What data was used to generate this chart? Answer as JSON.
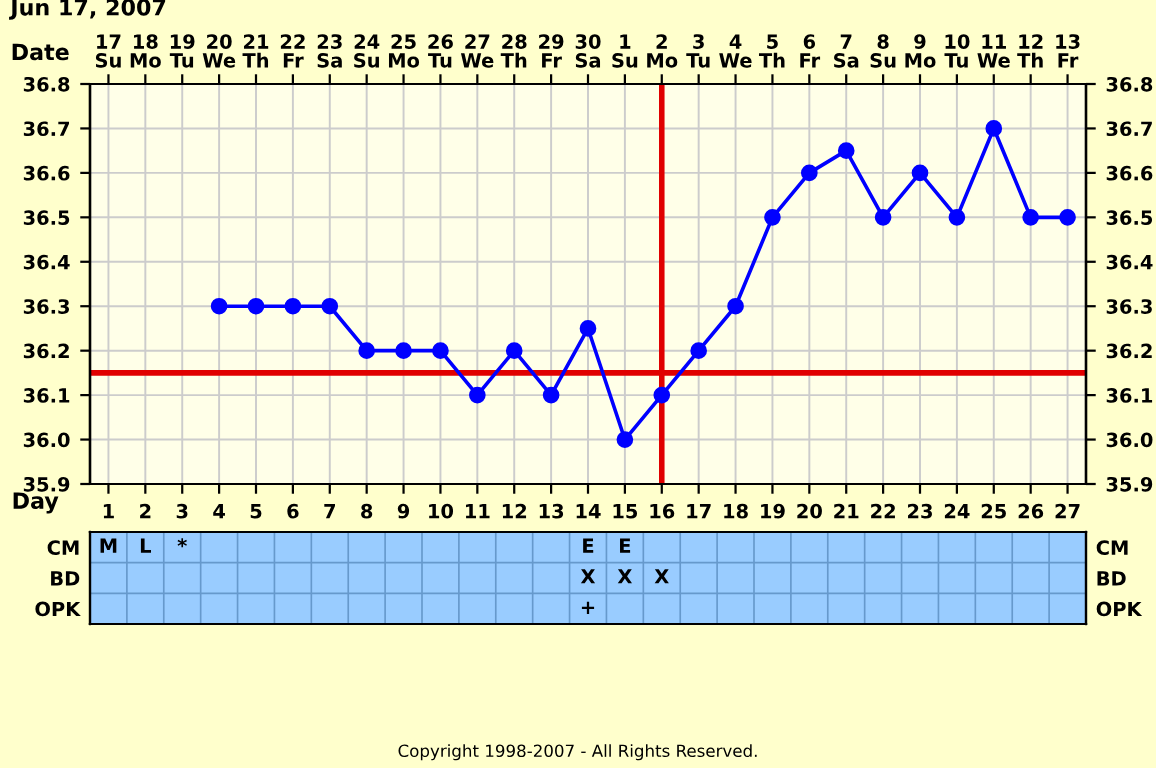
{
  "chart_data": [
    {
      "type": "line",
      "title": "Jun 17, 2007",
      "x2label": "Date",
      "xlabel": "Day",
      "x": [
        4,
        5,
        6,
        7,
        8,
        9,
        10,
        11,
        12,
        13,
        14,
        15,
        16,
        17,
        18,
        19,
        20,
        21,
        22,
        23,
        24,
        25,
        26,
        27
      ],
      "series": [
        {
          "color": "#0000ff",
          "values": [
            36.3,
            36.3,
            36.3,
            36.3,
            36.2,
            36.2,
            36.2,
            36.1,
            36.2,
            36.1,
            36.25,
            36.0,
            36.1,
            36.2,
            36.3,
            36.5,
            36.6,
            36.65,
            36.5,
            36.6,
            36.5,
            36.7,
            36.5,
            36.5
          ]
        }
      ],
      "xlim": [
        0.5,
        27.5
      ],
      "xticks": [
        1,
        2,
        3,
        4,
        5,
        6,
        7,
        8,
        9,
        10,
        11,
        12,
        13,
        14,
        15,
        16,
        17,
        18,
        19,
        20,
        21,
        22,
        23,
        24,
        25,
        26,
        27
      ],
      "x2lim": [
        "2007-06-16T12:00",
        "2007-07-13T12:00"
      ],
      "x2ticks": [
        {
          "value": "2007-06-17",
          "label": "17\nSu"
        },
        {
          "value": "2007-06-18",
          "label": "18\nMo"
        },
        {
          "value": "2007-06-19",
          "label": "19\nTu"
        },
        {
          "value": "2007-06-20",
          "label": "20\nWe"
        },
        {
          "value": "2007-06-21",
          "label": "21\nTh"
        },
        {
          "value": "2007-06-22",
          "label": "22\nFr"
        },
        {
          "value": "2007-06-23",
          "label": "23\nSa"
        },
        {
          "value": "2007-06-24",
          "label": "24\nSu"
        },
        {
          "value": "2007-06-25",
          "label": "25\nMo"
        },
        {
          "value": "2007-06-26",
          "label": "26\nTu"
        },
        {
          "value": "2007-06-27",
          "label": "27\nWe"
        },
        {
          "value": "2007-06-28",
          "label": "28\nTh"
        },
        {
          "value": "2007-06-29",
          "label": "29\nFr"
        },
        {
          "value": "2007-06-30",
          "label": "30\nSa"
        },
        {
          "value": "2007-07-01",
          "label": "1\nSu"
        },
        {
          "value": "2007-07-02",
          "label": "2\nMo"
        },
        {
          "value": "2007-07-03",
          "label": "3\nTu"
        },
        {
          "value": "2007-07-04",
          "label": "4\nWe"
        },
        {
          "value": "2007-07-05",
          "label": "5\nTh"
        },
        {
          "value": "2007-07-06",
          "label": "6\nFr"
        },
        {
          "value": "2007-07-07",
          "label": "7\nSa"
        },
        {
          "value": "2007-07-08",
          "label": "8\nSu"
        },
        {
          "value": "2007-07-09",
          "label": "9\nMo"
        },
        {
          "value": "2007-07-10",
          "label": "10\nTu"
        },
        {
          "value": "2007-07-11",
          "label": "11\nWe"
        },
        {
          "value": "2007-07-12",
          "label": "12\nTh"
        },
        {
          "value": "2007-07-13",
          "label": "13\nFr"
        }
      ],
      "ylim": [
        35.9,
        36.8
      ],
      "yticks": [
        {
          "value": 35.9,
          "label": "35.9"
        },
        {
          "value": 36.0,
          "label": "36.0"
        },
        {
          "value": 36.1,
          "label": "36.1"
        },
        {
          "value": 36.2,
          "label": "36.2"
        },
        {
          "value": 36.3,
          "label": "36.3"
        },
        {
          "value": 36.4,
          "label": "36.4"
        },
        {
          "value": 36.5,
          "label": "36.5"
        },
        {
          "value": 36.6,
          "label": "36.6"
        },
        {
          "value": 36.7,
          "label": "36.7"
        },
        {
          "value": 36.8,
          "label": "36.8"
        }
      ],
      "y2lim": [
        35.9,
        36.8
      ],
      "y2ticks": [
        {
          "value": 35.9,
          "label": "35.9"
        },
        {
          "value": 36.0,
          "label": "36.0"
        },
        {
          "value": 36.1,
          "label": "36.1"
        },
        {
          "value": 36.2,
          "label": "36.2"
        },
        {
          "value": 36.3,
          "label": "36.3"
        },
        {
          "value": 36.4,
          "label": "36.4"
        },
        {
          "value": 36.5,
          "label": "36.5"
        },
        {
          "value": 36.6,
          "label": "36.6"
        },
        {
          "value": 36.7,
          "label": "36.7"
        },
        {
          "value": 36.8,
          "label": "36.8"
        }
      ],
      "grid": true,
      "marker": "circle",
      "line_style": "solid",
      "ref_lines": [
        {
          "axis": "y",
          "value": 36.15,
          "color": "#e00000"
        },
        {
          "axis": "x",
          "value": 16,
          "color": "#e00000"
        }
      ],
      "annotations": [
        "Copyright 1998-2007 - All Rights Reserved."
      ]
    },
    {
      "type": "heatmap",
      "categories": [
        "1",
        "2",
        "3",
        "4",
        "5",
        "6",
        "7",
        "8",
        "9",
        "10",
        "11",
        "12",
        "13",
        "14",
        "15",
        "16",
        "17",
        "18",
        "19",
        "20",
        "21",
        "22",
        "23",
        "24",
        "25",
        "26",
        "27"
      ],
      "y_categories": [
        "CM",
        "BD",
        "OPK"
      ],
      "y2_categories": [
        "CM",
        "BD",
        "OPK"
      ],
      "cells": [
        [
          null,
          null,
          null,
          null,
          null,
          null,
          null,
          null,
          null,
          null,
          null,
          null,
          null,
          null,
          null,
          null,
          null,
          null,
          null,
          null,
          null,
          null,
          null,
          null,
          null,
          null,
          null
        ],
        [
          null,
          null,
          null,
          null,
          null,
          null,
          null,
          null,
          null,
          null,
          null,
          null,
          null,
          null,
          null,
          null,
          null,
          null,
          null,
          null,
          null,
          null,
          null,
          null,
          null,
          null,
          null
        ],
        [
          null,
          null,
          null,
          null,
          null,
          null,
          null,
          null,
          null,
          null,
          null,
          null,
          null,
          null,
          null,
          null,
          null,
          null,
          null,
          null,
          null,
          null,
          null,
          null,
          null,
          null,
          null
        ]
      ],
      "cell_labels": [
        [
          "M",
          "L",
          "*",
          null,
          null,
          null,
          null,
          null,
          null,
          null,
          null,
          null,
          null,
          "E",
          "E",
          null,
          null,
          null,
          null,
          null,
          null,
          null,
          null,
          null,
          null,
          null,
          null
        ],
        [
          null,
          null,
          null,
          null,
          null,
          null,
          null,
          null,
          null,
          null,
          null,
          null,
          null,
          "X",
          "X",
          "X",
          null,
          null,
          null,
          null,
          null,
          null,
          null,
          null,
          null,
          null,
          null
        ],
        [
          null,
          null,
          null,
          null,
          null,
          null,
          null,
          null,
          null,
          null,
          null,
          null,
          null,
          "+",
          null,
          null,
          null,
          null,
          null,
          null,
          null,
          null,
          null,
          null,
          null,
          null,
          null
        ]
      ],
      "tick_labels": "y"
    }
  ]
}
